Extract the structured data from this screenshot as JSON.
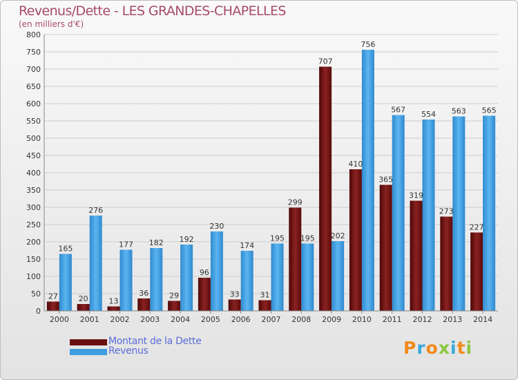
{
  "chart_data": {
    "type": "bar",
    "title": "Revenus/Dette - LES GRANDES-CHAPELLES",
    "subtitle": "(en milliers d'€)",
    "xlabel": "",
    "ylabel": "",
    "ylim": [
      0,
      800
    ],
    "yticks": [
      0,
      50,
      100,
      150,
      200,
      250,
      300,
      350,
      400,
      450,
      500,
      550,
      600,
      650,
      700,
      750,
      800
    ],
    "grid": true,
    "legend_position": "bottom-left",
    "categories": [
      "2000",
      "2001",
      "2002",
      "2003",
      "2004",
      "2005",
      "2006",
      "2007",
      "2008",
      "2009",
      "2010",
      "2011",
      "2012",
      "2013",
      "2014"
    ],
    "series": [
      {
        "name": "Montant de la Dette",
        "color": "#7a1616",
        "values": [
          27,
          20,
          13,
          36,
          29,
          96,
          33,
          31,
          299,
          707,
          410,
          365,
          319,
          273,
          227
        ]
      },
      {
        "name": "Revenus",
        "color": "#3d9ee2",
        "values": [
          165,
          276,
          177,
          182,
          192,
          230,
          174,
          195,
          195,
          202,
          756,
          567,
          554,
          563,
          565
        ]
      }
    ]
  },
  "logo": {
    "text": "Proxiti",
    "colors": [
      "#f08a1c",
      "#36a8d8",
      "#f08a1c",
      "#8cc63f",
      "#36a8d8",
      "#f08a1c",
      "#8cc63f"
    ]
  }
}
